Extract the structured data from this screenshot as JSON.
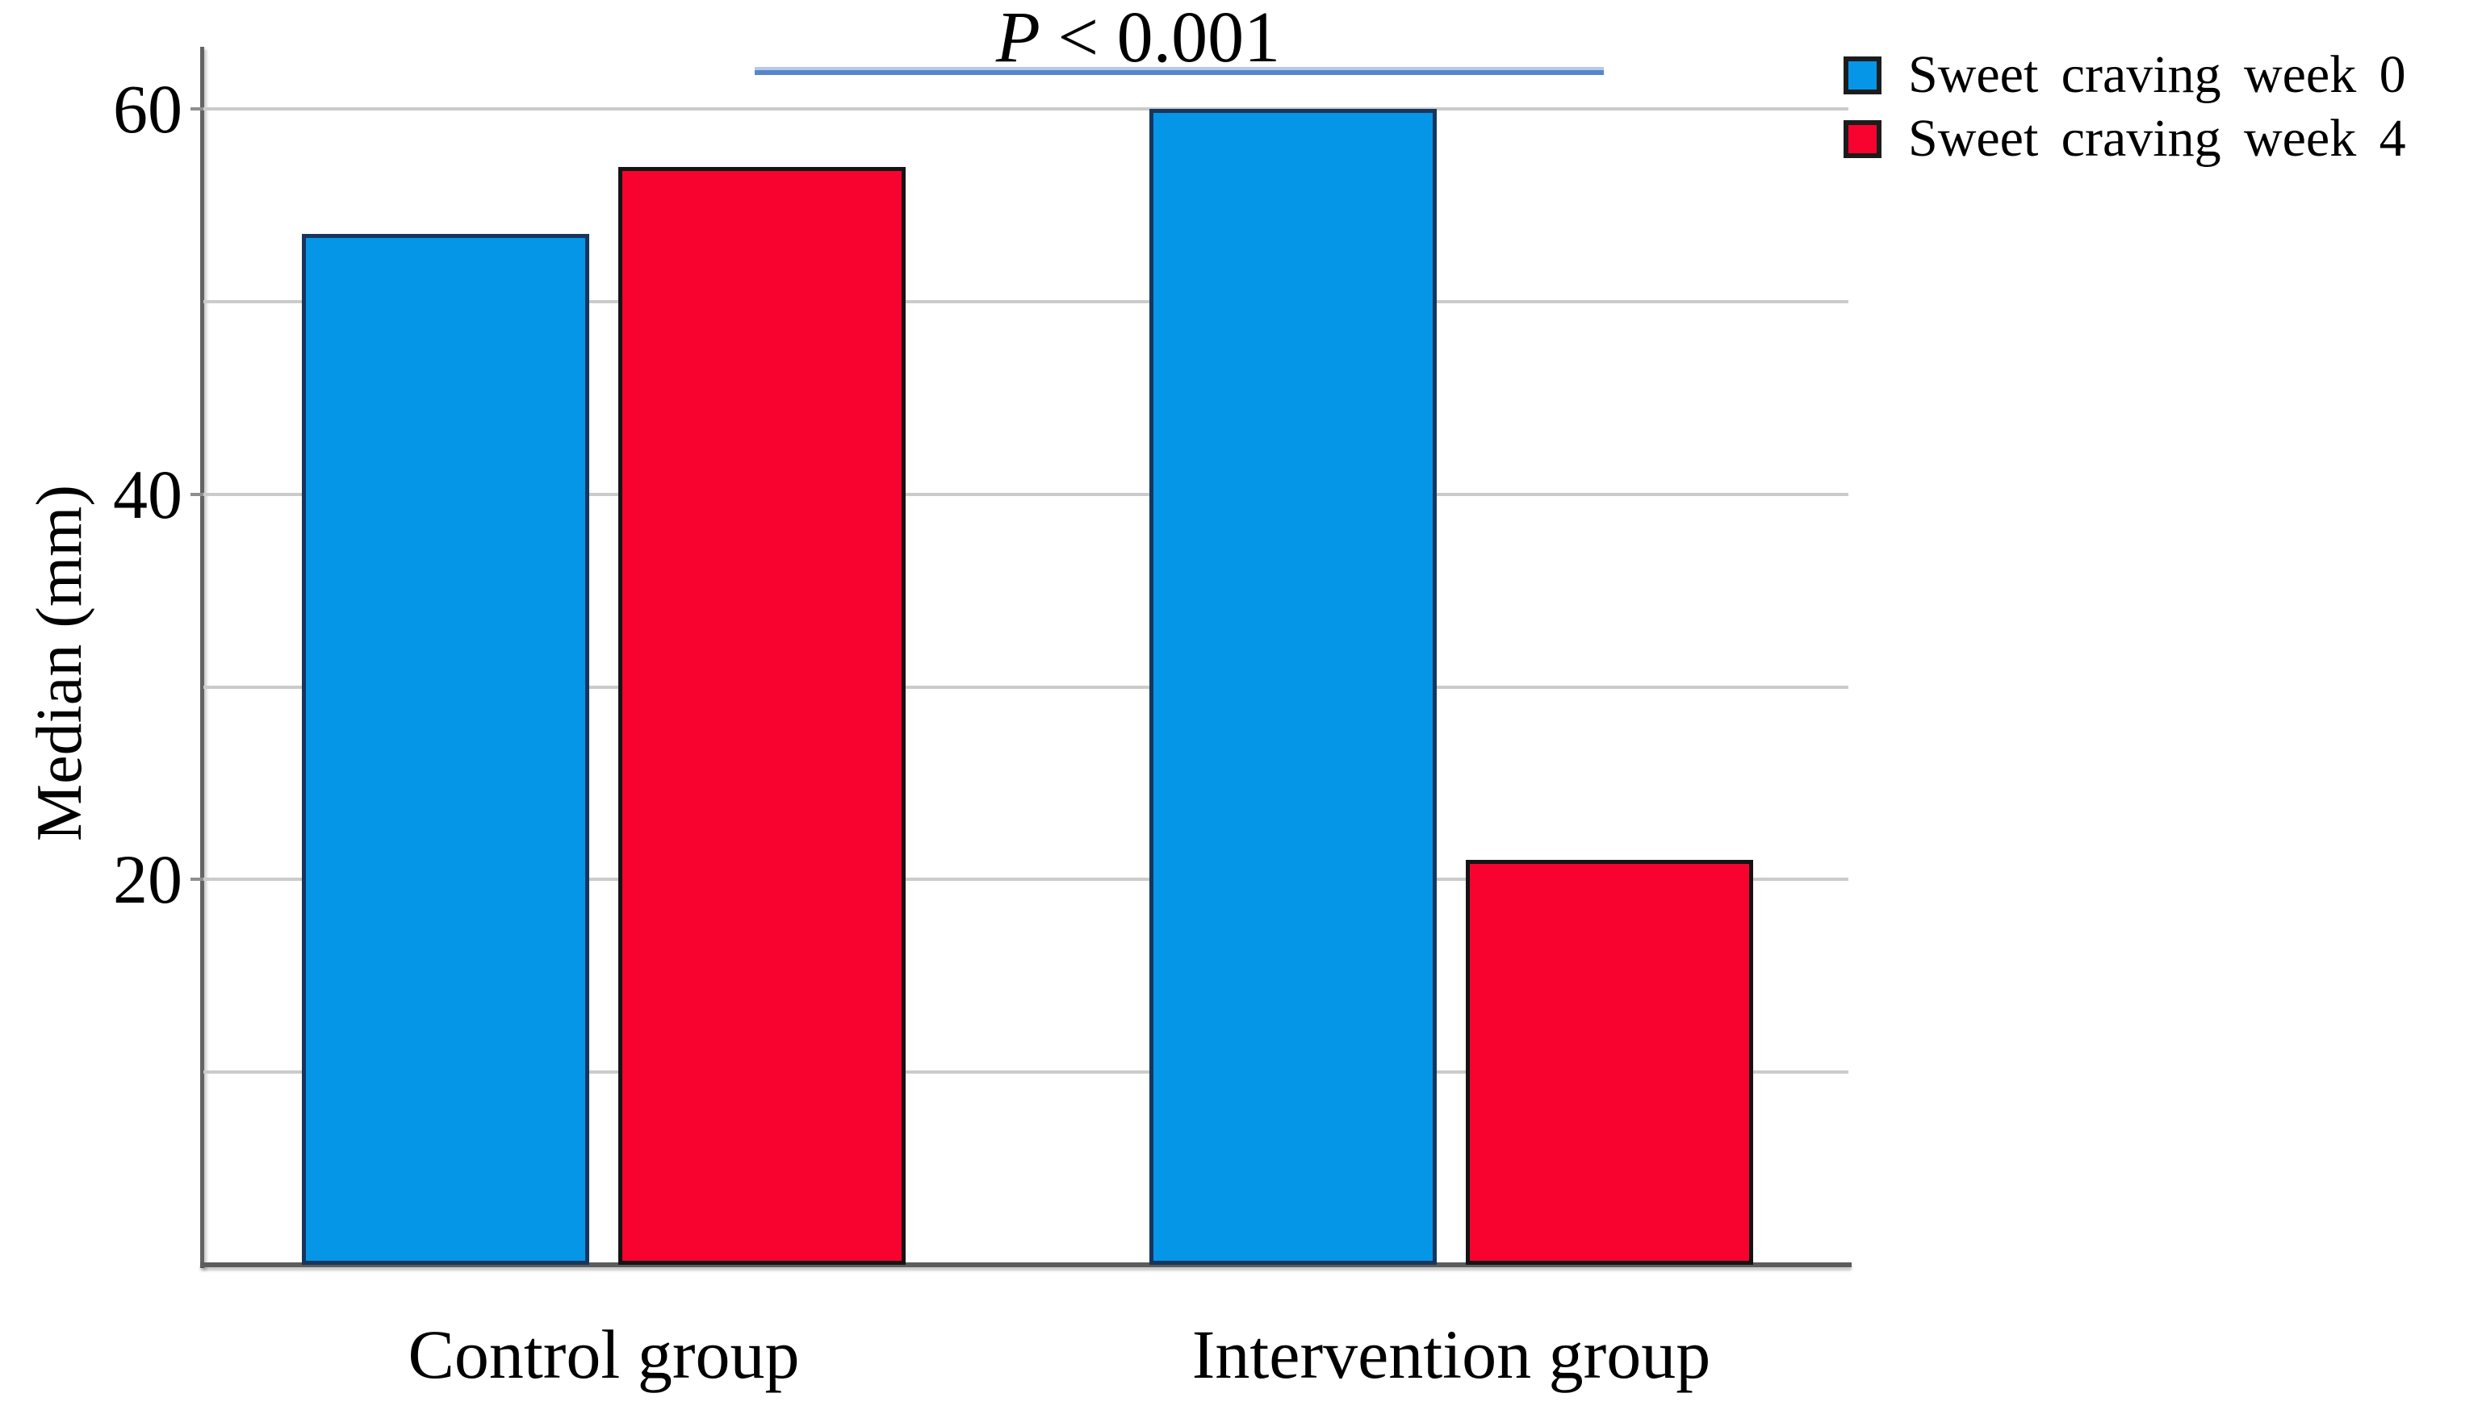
{
  "chart_data": {
    "type": "bar",
    "title": "",
    "xlabel": "",
    "ylabel": "Median (mm)",
    "categories": [
      "Control group",
      "Intervention group"
    ],
    "series": [
      {
        "name": "Sweet craving week 0",
        "color": "#0596e8",
        "border_color": "#17365d",
        "values": [
          53.5,
          60
        ]
      },
      {
        "name": "Sweet craving week 4",
        "color": "#f8032f",
        "border_color": "#141414",
        "values": [
          57,
          21
        ]
      }
    ],
    "ylim": [
      0,
      63
    ],
    "yticks_labeled": [
      20,
      40,
      60
    ],
    "gridline_step": 10,
    "grid": true,
    "legend_position": "top-right",
    "annotation": {
      "text": "P < 0.001",
      "italic_part": "P",
      "rest_part": "< 0.001",
      "line_color": "#5586cd"
    },
    "style_colors": {
      "gridline": "#cbcbcb",
      "axis": "#5c5c5c",
      "text": "#000000"
    }
  }
}
